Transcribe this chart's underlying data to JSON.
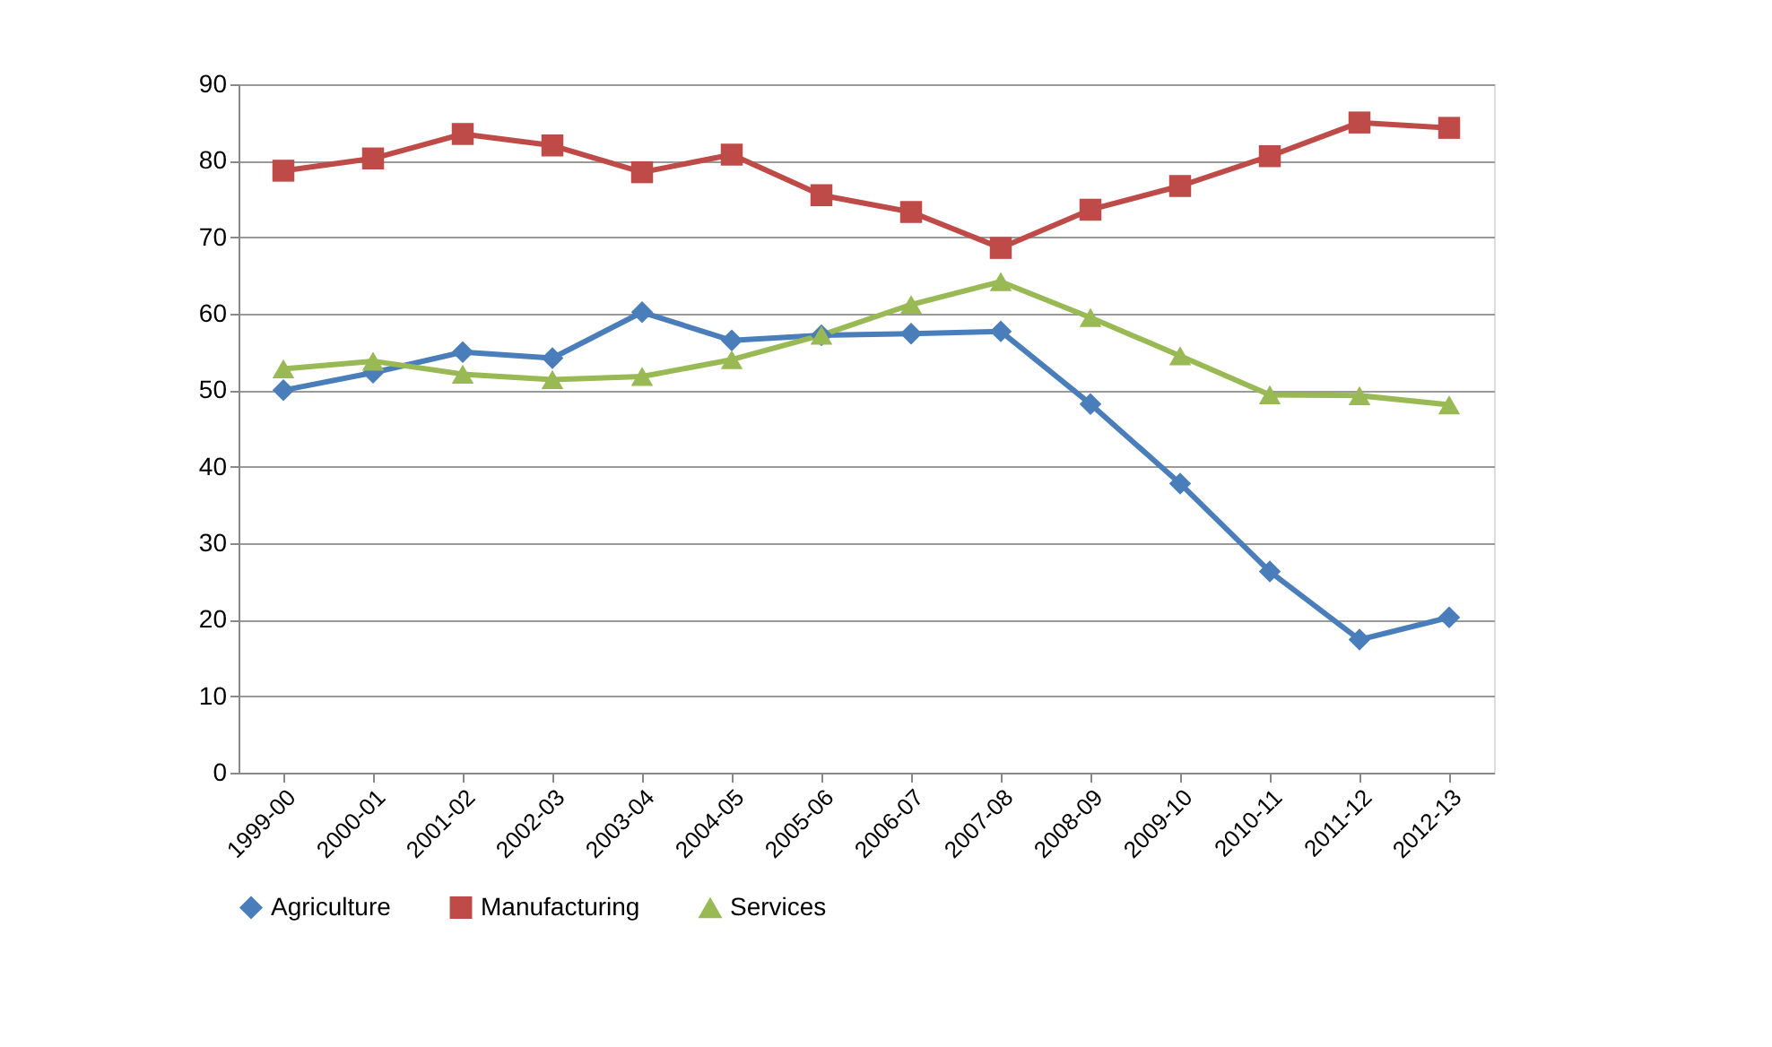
{
  "chart_data": {
    "type": "line",
    "categories": [
      "1999-00",
      "2000-01",
      "2001-02",
      "2002-03",
      "2003-04",
      "2004-05",
      "2005-06",
      "2006-07",
      "2007-08",
      "2008-09",
      "2009-10",
      "2010-11",
      "2011-12",
      "2012-13"
    ],
    "series": [
      {
        "name": "Agriculture",
        "color": "#4a7ebb",
        "marker": "diamond",
        "values": [
          50,
          52.3,
          55,
          54.2,
          60.2,
          56.5,
          57.2,
          57.4,
          57.7,
          48.2,
          37.8,
          26.3,
          17.4,
          20.3
        ]
      },
      {
        "name": "Manufacturing",
        "color": "#be4b48",
        "marker": "square",
        "values": [
          78.7,
          80.3,
          83.5,
          82,
          78.5,
          80.8,
          75.5,
          73.3,
          68.6,
          73.6,
          76.7,
          80.6,
          85,
          84.3
        ]
      },
      {
        "name": "Services",
        "color": "#98b954",
        "marker": "triangle",
        "values": [
          52.8,
          53.8,
          52.1,
          51.4,
          51.8,
          54,
          57.2,
          61.2,
          64.2,
          59.5,
          54.5,
          49.4,
          49.3,
          48.1
        ]
      }
    ],
    "ylim": [
      0,
      90
    ],
    "yticks": [
      0,
      10,
      20,
      30,
      40,
      50,
      60,
      70,
      80,
      90
    ],
    "grid": "y",
    "legend": "bottom",
    "line_style": "solid"
  }
}
